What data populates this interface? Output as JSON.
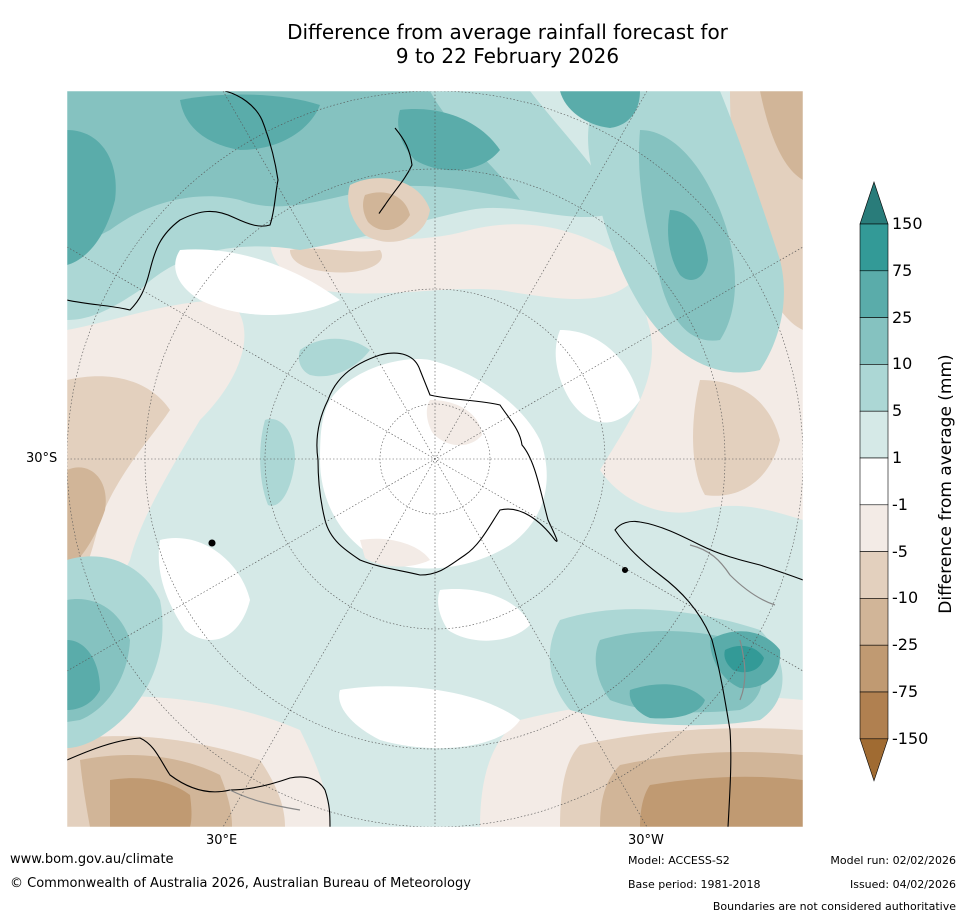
{
  "title": {
    "line1": "Difference from average rainfall forecast for",
    "line2": "9 to 22 February 2026"
  },
  "map": {
    "lat_label_left": "30°S",
    "lon_labels": [
      "30°E",
      "30°W"
    ]
  },
  "colorbar": {
    "title": "Difference from average (mm)",
    "levels": [
      "150",
      "75",
      "25",
      "10",
      "5",
      "1",
      "-1",
      "-5",
      "-10",
      "-25",
      "-75",
      "-150"
    ],
    "colors": [
      "#2e8b8b",
      "#339a97",
      "#5aacaa",
      "#85c2c0",
      "#acd7d5",
      "#d5e9e7",
      "#ffffff",
      "#f3ebe6",
      "#e3d0be",
      "#d1b598",
      "#c09a72",
      "#b08050",
      "#a06b32"
    ]
  },
  "footer": {
    "website": "www.bom.gov.au/climate",
    "copyright": "© Commonwealth of Australia 2026, Australian Bureau of Meteorology",
    "model": "Model: ACCESS-S2",
    "base_period": "Base period: 1981-2018",
    "model_run": "Model run: 02/02/2026",
    "issued": "Issued: 04/02/2026",
    "disclaimer": "Boundaries are not considered authoritative"
  }
}
